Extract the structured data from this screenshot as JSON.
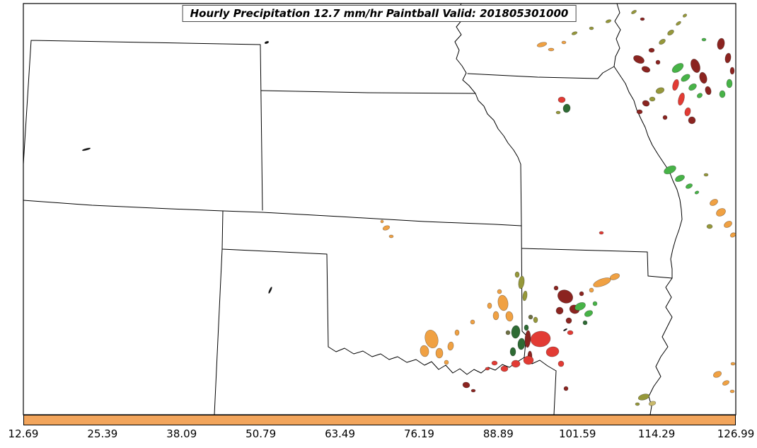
{
  "title": {
    "text": "Hourly Precipitation 12.7 mm/hr Paintball Valid: 201805301000"
  },
  "colorbar": {
    "color": "#F2A55C",
    "ticks": [
      "12.69",
      "25.39",
      "38.09",
      "50.79",
      "63.49",
      "76.19",
      "88.89",
      "101.59",
      "114.29",
      "126.99"
    ]
  },
  "palette": {
    "orange": "#F0A143",
    "red": "#E23B34",
    "darkred": "#8B2420",
    "green": "#47B347",
    "darkgreen": "#2E6B34",
    "olive": "#96983A",
    "darkolive": "#6E7042",
    "khaki": "#C9B96B",
    "black": "#111111"
  },
  "chart_data": {
    "type": "paintball_map",
    "title": "Hourly Precipitation 12.7 mm/hr Paintball Valid: 201805301000",
    "threshold": "12.7 mm/hr",
    "valid_time": "201805301000",
    "colorbar_ticks": [
      12.69,
      25.39,
      38.09,
      50.79,
      63.49,
      76.19,
      88.89,
      101.59,
      114.29,
      126.99
    ],
    "colorbar_range": [
      12.69,
      126.99
    ],
    "region_states_visible": [
      "Colorado",
      "Nebraska",
      "Kansas",
      "Oklahoma",
      "Texas",
      "Missouri",
      "Iowa",
      "Arkansas",
      "New Mexico"
    ],
    "blob_format": [
      "cx_px",
      "cy_px",
      "rx_px",
      "ry_px",
      "rotation_deg",
      "color_key"
    ],
    "blobs": [
      [
        766,
        63,
        7,
        3,
        -15,
        "orange"
      ],
      [
        779,
        70,
        4,
        2,
        0,
        "orange"
      ],
      [
        797,
        60,
        3,
        2,
        0,
        "orange"
      ],
      [
        812,
        47,
        4,
        2,
        -20,
        "olive"
      ],
      [
        836,
        40,
        3,
        2,
        0,
        "olive"
      ],
      [
        860,
        30,
        4,
        2,
        -20,
        "olive"
      ],
      [
        896,
        17,
        4,
        2,
        -30,
        "olive"
      ],
      [
        908,
        27,
        3,
        2,
        0,
        "darkred"
      ],
      [
        903,
        84,
        8,
        5,
        25,
        "darkred"
      ],
      [
        913,
        98,
        6,
        4,
        20,
        "darkred"
      ],
      [
        921,
        71,
        4,
        3,
        0,
        "darkred"
      ],
      [
        930,
        88,
        3,
        3,
        0,
        "darkred"
      ],
      [
        936,
        59,
        5,
        3,
        -35,
        "olive"
      ],
      [
        948,
        46,
        5,
        3,
        -35,
        "olive"
      ],
      [
        959,
        33,
        4,
        2,
        -35,
        "olive"
      ],
      [
        968,
        22,
        3,
        2,
        -35,
        "olive"
      ],
      [
        958,
        96,
        9,
        5,
        -35,
        "green"
      ],
      [
        969,
        110,
        7,
        4,
        -35,
        "green"
      ],
      [
        979,
        123,
        6,
        4,
        -35,
        "green"
      ],
      [
        989,
        135,
        4,
        3,
        -35,
        "green"
      ],
      [
        995,
        56,
        3,
        2,
        0,
        "green"
      ],
      [
        955,
        120,
        4,
        8,
        15,
        "red"
      ],
      [
        963,
        140,
        4,
        9,
        15,
        "red"
      ],
      [
        972,
        158,
        4,
        6,
        15,
        "red"
      ],
      [
        983,
        93,
        6,
        10,
        -20,
        "darkred"
      ],
      [
        994,
        110,
        5,
        8,
        -15,
        "darkred"
      ],
      [
        1001,
        128,
        4,
        6,
        -15,
        "darkred"
      ],
      [
        978,
        170,
        5,
        5,
        0,
        "darkred"
      ],
      [
        933,
        128,
        6,
        4,
        -20,
        "olive"
      ],
      [
        922,
        140,
        4,
        3,
        0,
        "olive"
      ],
      [
        913,
        146,
        5,
        4,
        20,
        "darkred"
      ],
      [
        904,
        158,
        4,
        3,
        0,
        "darkred"
      ],
      [
        940,
        166,
        3,
        3,
        0,
        "darkred"
      ],
      [
        794,
        141,
        5,
        4,
        0,
        "red"
      ],
      [
        801,
        153,
        5,
        6,
        10,
        "darkgreen"
      ],
      [
        789,
        159,
        3,
        2,
        0,
        "olive"
      ],
      [
        1019,
        62,
        5,
        8,
        10,
        "darkred"
      ],
      [
        1029,
        82,
        4,
        7,
        10,
        "darkred"
      ],
      [
        1035,
        100,
        3,
        5,
        0,
        "darkred"
      ],
      [
        1031,
        118,
        4,
        6,
        0,
        "green"
      ],
      [
        1021,
        133,
        4,
        5,
        0,
        "green"
      ],
      [
        947,
        240,
        9,
        5,
        -25,
        "green"
      ],
      [
        961,
        252,
        7,
        4,
        -25,
        "green"
      ],
      [
        974,
        263,
        5,
        3,
        -25,
        "green"
      ],
      [
        985,
        272,
        3,
        2,
        -25,
        "green"
      ],
      [
        998,
        247,
        3,
        2,
        0,
        "olive"
      ],
      [
        1009,
        286,
        6,
        4,
        -30,
        "orange"
      ],
      [
        1019,
        300,
        7,
        5,
        -30,
        "orange"
      ],
      [
        1029,
        317,
        6,
        4,
        -30,
        "orange"
      ],
      [
        1036,
        332,
        4,
        3,
        -30,
        "orange"
      ],
      [
        1003,
        320,
        4,
        3,
        0,
        "olive"
      ],
      [
        850,
        329,
        3,
        2,
        0,
        "red"
      ],
      [
        546,
        322,
        5,
        3,
        -20,
        "orange"
      ],
      [
        553,
        334,
        3,
        2,
        0,
        "orange"
      ],
      [
        540,
        313,
        2,
        2,
        0,
        "orange"
      ],
      [
        122,
        211,
        6,
        1.2,
        -15,
        "black"
      ],
      [
        382,
        410,
        5,
        1.2,
        -65,
        "black"
      ],
      [
        377,
        60,
        3,
        1.5,
        -20,
        "black"
      ],
      [
        799,
        466,
        3,
        1,
        -30,
        "black"
      ],
      [
        610,
        479,
        9,
        13,
        -15,
        "orange"
      ],
      [
        600,
        496,
        6,
        8,
        -10,
        "orange"
      ],
      [
        621,
        499,
        5,
        7,
        0,
        "orange"
      ],
      [
        637,
        489,
        4,
        6,
        10,
        "orange"
      ],
      [
        646,
        470,
        3,
        4,
        0,
        "orange"
      ],
      [
        631,
        512,
        3,
        3,
        0,
        "orange"
      ],
      [
        711,
        428,
        7,
        11,
        -10,
        "orange"
      ],
      [
        720,
        447,
        5,
        7,
        -10,
        "orange"
      ],
      [
        701,
        446,
        4,
        6,
        0,
        "orange"
      ],
      [
        692,
        432,
        3,
        4,
        0,
        "orange"
      ],
      [
        706,
        412,
        3,
        3,
        0,
        "orange"
      ],
      [
        668,
        455,
        3,
        3,
        0,
        "orange"
      ],
      [
        737,
        399,
        4,
        9,
        8,
        "olive"
      ],
      [
        742,
        418,
        3,
        7,
        8,
        "olive"
      ],
      [
        731,
        388,
        3,
        4,
        0,
        "olive"
      ],
      [
        757,
        452,
        3,
        4,
        0,
        "olive"
      ],
      [
        729,
        469,
        6,
        9,
        5,
        "darkgreen"
      ],
      [
        737,
        486,
        5,
        8,
        5,
        "darkgreen"
      ],
      [
        725,
        497,
        4,
        6,
        0,
        "darkgreen"
      ],
      [
        744,
        463,
        3,
        4,
        0,
        "darkgreen"
      ],
      [
        718,
        470,
        3,
        3,
        0,
        "darkolive"
      ],
      [
        750,
        448,
        3,
        3,
        0,
        "darkolive"
      ],
      [
        799,
        419,
        11,
        9,
        25,
        "darkred"
      ],
      [
        812,
        437,
        7,
        6,
        20,
        "darkred"
      ],
      [
        791,
        439,
        5,
        5,
        0,
        "darkred"
      ],
      [
        804,
        453,
        4,
        4,
        0,
        "darkred"
      ],
      [
        786,
        407,
        3,
        3,
        0,
        "darkred"
      ],
      [
        822,
        415,
        3,
        3,
        0,
        "darkred"
      ],
      [
        746,
        479,
        4,
        12,
        3,
        "darkred"
      ],
      [
        749,
        503,
        3,
        7,
        0,
        "darkred"
      ],
      [
        820,
        433,
        8,
        5,
        -25,
        "green"
      ],
      [
        832,
        443,
        6,
        4,
        -25,
        "green"
      ],
      [
        841,
        429,
        3,
        3,
        0,
        "green"
      ],
      [
        827,
        456,
        3,
        3,
        0,
        "darkgreen"
      ],
      [
        764,
        479,
        14,
        11,
        -8,
        "red"
      ],
      [
        781,
        497,
        9,
        7,
        -10,
        "red"
      ],
      [
        747,
        509,
        7,
        6,
        0,
        "red"
      ],
      [
        729,
        514,
        6,
        5,
        0,
        "red"
      ],
      [
        713,
        521,
        5,
        4,
        0,
        "red"
      ],
      [
        699,
        513,
        4,
        3,
        0,
        "red"
      ],
      [
        793,
        514,
        4,
        4,
        0,
        "red"
      ],
      [
        806,
        470,
        4,
        3,
        0,
        "red"
      ],
      [
        689,
        521,
        3,
        2,
        0,
        "red"
      ],
      [
        851,
        399,
        13,
        5,
        -20,
        "orange"
      ],
      [
        869,
        391,
        7,
        4,
        -20,
        "orange"
      ],
      [
        836,
        410,
        3,
        3,
        0,
        "orange"
      ],
      [
        659,
        544,
        5,
        4,
        10,
        "darkred"
      ],
      [
        800,
        549,
        3,
        3,
        0,
        "darkred"
      ],
      [
        669,
        552,
        3,
        2,
        0,
        "darkred"
      ],
      [
        910,
        561,
        8,
        4,
        -15,
        "olive"
      ],
      [
        922,
        570,
        5,
        3,
        -15,
        "khaki"
      ],
      [
        901,
        571,
        3,
        2,
        0,
        "olive"
      ],
      [
        1014,
        529,
        6,
        4,
        -25,
        "orange"
      ],
      [
        1026,
        541,
        5,
        3,
        -25,
        "orange"
      ],
      [
        1035,
        553,
        3,
        2,
        0,
        "orange"
      ],
      [
        1036,
        514,
        3,
        2,
        0,
        "orange"
      ]
    ]
  }
}
